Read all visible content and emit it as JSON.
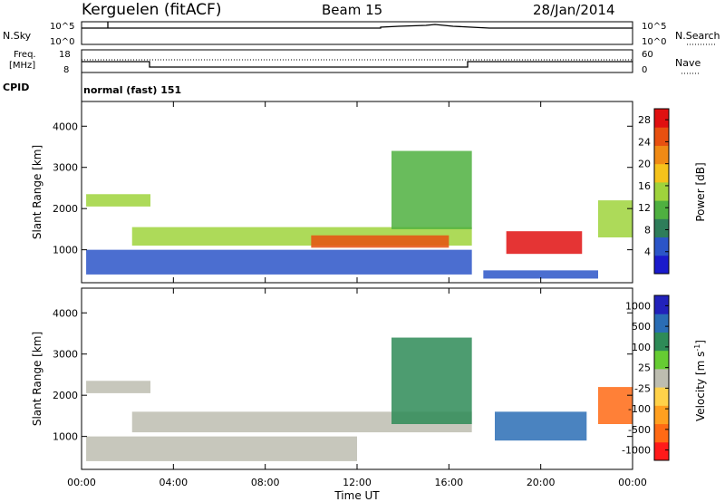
{
  "header": {
    "station": "Kerguelen (fitACF)",
    "beam": "Beam 15",
    "date": "28/Jan/2014"
  },
  "panels": {
    "nsky": {
      "label": "N.Sky",
      "right_label": "N.Search",
      "ticks_left": [
        "10^5",
        "10^0"
      ],
      "ticks_right": [
        "10^5",
        "10^0"
      ]
    },
    "freq": {
      "label_line1": "Freq.",
      "label_line2": "[MHz]",
      "cpid_label": "CPID",
      "right_label": "Nave",
      "ticks_left": [
        "18",
        "8"
      ],
      "ticks_right": [
        "60",
        "0"
      ],
      "cpid_text": "normal (fast) 151"
    }
  },
  "colors": {
    "power": [
      "#1a1acc",
      "#2b55c8",
      "#2e7d5a",
      "#4fb040",
      "#9fd33c",
      "#f5c21b",
      "#f08a15",
      "#e85010",
      "#e01010"
    ],
    "velocity": [
      "#ff1a1a",
      "#ff6a14",
      "#ffa020",
      "#ffd24a",
      "#bdbdb0",
      "#66cc33",
      "#2e8b57",
      "#2a6db5",
      "#2222bb"
    ],
    "ground_scatter": "#bdbdb0"
  },
  "chart_data": [
    {
      "type": "heatmap",
      "title": "",
      "xlabel": "Time UT",
      "ylabel": "Slant Range [km]",
      "x_ticks": [
        "00:00",
        "04:00",
        "08:00",
        "12:00",
        "16:00",
        "20:00",
        "00:00"
      ],
      "y_ticks": [
        "1000",
        "2000",
        "3000",
        "4000"
      ],
      "xlim_hours": [
        0,
        24
      ],
      "ylim": [
        200,
        4600
      ],
      "colorbar": {
        "label": "Power [dB]",
        "ticks": [
          "4",
          "8",
          "12",
          "16",
          "20",
          "24",
          "28"
        ],
        "range": [
          0,
          30
        ]
      },
      "features": [
        {
          "t0": 0.2,
          "t1": 3.0,
          "r0": 2050,
          "r1": 2350,
          "level": 0.45
        },
        {
          "t0": 2.2,
          "t1": 17.0,
          "r0": 1100,
          "r1": 1550,
          "level": 0.55
        },
        {
          "t0": 10.0,
          "t1": 16.0,
          "r0": 1050,
          "r1": 1350,
          "level": 0.85
        },
        {
          "t0": 0.2,
          "t1": 17.0,
          "r0": 400,
          "r1": 1000,
          "level": 0.15
        },
        {
          "t0": 13.5,
          "t1": 17.0,
          "r0": 1500,
          "r1": 3400,
          "level": 0.35
        },
        {
          "t0": 18.5,
          "t1": 21.8,
          "r0": 900,
          "r1": 1450,
          "level": 1.0
        },
        {
          "t0": 22.5,
          "t1": 24.0,
          "r0": 1300,
          "r1": 2200,
          "level": 0.45
        },
        {
          "t0": 17.5,
          "t1": 22.5,
          "r0": 300,
          "r1": 500,
          "level": 0.1
        }
      ]
    },
    {
      "type": "heatmap",
      "title": "",
      "xlabel": "Time UT",
      "ylabel": "Slant Range [km]",
      "x_ticks": [
        "00:00",
        "04:00",
        "08:00",
        "12:00",
        "16:00",
        "20:00",
        "00:00"
      ],
      "y_ticks": [
        "1000",
        "2000",
        "3000",
        "4000"
      ],
      "xlim_hours": [
        0,
        24
      ],
      "ylim": [
        200,
        4600
      ],
      "colorbar": {
        "label": "Velocity [m s",
        "label_superscript": "-1",
        "label_close": "]",
        "ticks": [
          "1000",
          "500",
          "100",
          "25",
          "-25",
          "-100",
          "-500",
          "-1000"
        ],
        "range": [
          -1000,
          1000
        ]
      },
      "features": [
        {
          "t0": 0.2,
          "t1": 3.0,
          "r0": 2050,
          "r1": 2350,
          "level": 0.5
        },
        {
          "t0": 2.2,
          "t1": 17.0,
          "r0": 1100,
          "r1": 1600,
          "level": 0.5
        },
        {
          "t0": 0.2,
          "t1": 12.0,
          "r0": 400,
          "r1": 1000,
          "level": 0.45
        },
        {
          "t0": 13.5,
          "t1": 17.0,
          "r0": 1300,
          "r1": 3400,
          "level": 0.7
        },
        {
          "t0": 18.0,
          "t1": 22.0,
          "r0": 900,
          "r1": 1600,
          "level": 0.85
        },
        {
          "t0": 22.5,
          "t1": 24.0,
          "r0": 1300,
          "r1": 2200,
          "level": 0.1
        }
      ]
    }
  ]
}
